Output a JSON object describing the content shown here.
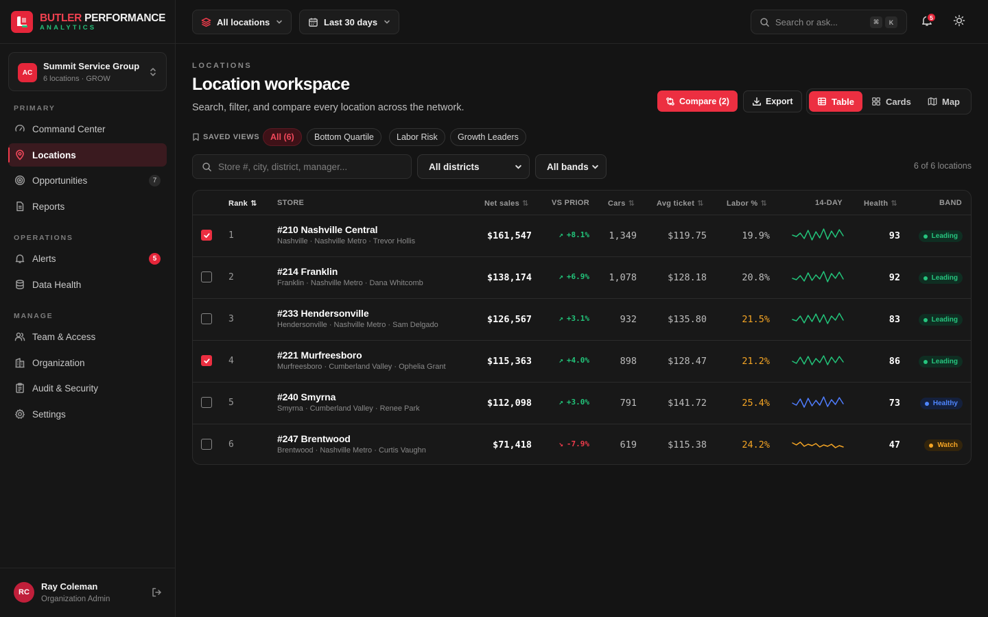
{
  "brand": {
    "name_part1": "BUTLER",
    "name_part2": "PERFORMANCE",
    "subtitle": "ANALYTICS"
  },
  "org": {
    "initials": "AC",
    "name": "Summit Service Group",
    "meta": "6 locations · GROW"
  },
  "nav": {
    "primary_label": "PRIMARY",
    "primary": [
      {
        "label": "Command Center",
        "icon": "gauge-icon"
      },
      {
        "label": "Locations",
        "icon": "map-pin-icon",
        "active": true
      },
      {
        "label": "Opportunities",
        "icon": "target-icon",
        "count": "7"
      },
      {
        "label": "Reports",
        "icon": "file-icon"
      }
    ],
    "operations_label": "OPERATIONS",
    "operations": [
      {
        "label": "Alerts",
        "icon": "bell-icon",
        "count": "5"
      },
      {
        "label": "Data Health",
        "icon": "database-icon"
      }
    ],
    "manage_label": "MANAGE",
    "manage": [
      {
        "label": "Team & Access",
        "icon": "users-icon"
      },
      {
        "label": "Organization",
        "icon": "building-icon"
      },
      {
        "label": "Audit & Security",
        "icon": "clipboard-icon"
      },
      {
        "label": "Settings",
        "icon": "gear-icon"
      }
    ]
  },
  "user": {
    "initials": "RC",
    "name": "Ray Coleman",
    "role": "Organization Admin"
  },
  "topbar": {
    "locations_label": "All locations",
    "range_label": "Last 30 days",
    "search_placeholder": "Search or ask...",
    "kbd_cmd": "⌘",
    "kbd_k": "K",
    "notif_count": "5"
  },
  "page": {
    "eyebrow": "LOCATIONS",
    "title": "Location workspace",
    "subtitle": "Search, filter, and compare every location across the network.",
    "compare_label": "Compare (2)",
    "export_label": "Export",
    "views": {
      "table": "Table",
      "cards": "Cards",
      "map": "Map"
    },
    "saved_views_label": "SAVED VIEWS",
    "chips": [
      "All (6)",
      "Bottom Quartile",
      "Labor Risk",
      "Growth Leaders"
    ],
    "filter_placeholder": "Store #, city, district, manager...",
    "district_select": "All districts",
    "band_select": "All bands",
    "count_text": "6 of 6 locations"
  },
  "table": {
    "headers": {
      "rank": "Rank",
      "store": "STORE",
      "sales": "Net sales",
      "vs": "VS PRIOR",
      "cars": "Cars",
      "ticket": "Avg ticket",
      "labor": "Labor %",
      "trend": "14-DAY",
      "health": "Health",
      "band": "BAND"
    },
    "rows": [
      {
        "checked": true,
        "rank": "1",
        "name": "#210 Nashville Central",
        "meta": "Nashville · Nashville Metro · Trevor Hollis",
        "sales": "$161,547",
        "vs": "+8.1%",
        "dir": "up",
        "cars": "1,349",
        "ticket": "$119.75",
        "labor": "19.9%",
        "labor_warn": false,
        "health": "93",
        "band": "Leading",
        "band_type": "leading",
        "spark_color": "#22c47a"
      },
      {
        "checked": false,
        "rank": "2",
        "name": "#214 Franklin",
        "meta": "Franklin · Nashville Metro · Dana Whitcomb",
        "sales": "$138,174",
        "vs": "+6.9%",
        "dir": "up",
        "cars": "1,078",
        "ticket": "$128.18",
        "labor": "20.8%",
        "labor_warn": false,
        "health": "92",
        "band": "Leading",
        "band_type": "leading",
        "spark_color": "#22c47a"
      },
      {
        "checked": false,
        "rank": "3",
        "name": "#233 Hendersonville",
        "meta": "Hendersonville · Nashville Metro · Sam Delgado",
        "sales": "$126,567",
        "vs": "+3.1%",
        "dir": "up",
        "cars": "932",
        "ticket": "$135.80",
        "labor": "21.5%",
        "labor_warn": true,
        "health": "83",
        "band": "Leading",
        "band_type": "leading",
        "spark_color": "#22c47a"
      },
      {
        "checked": true,
        "rank": "4",
        "name": "#221 Murfreesboro",
        "meta": "Murfreesboro · Cumberland Valley · Ophelia Grant",
        "sales": "$115,363",
        "vs": "+4.0%",
        "dir": "up",
        "cars": "898",
        "ticket": "$128.47",
        "labor": "21.2%",
        "labor_warn": true,
        "health": "86",
        "band": "Leading",
        "band_type": "leading",
        "spark_color": "#22c47a"
      },
      {
        "checked": false,
        "rank": "5",
        "name": "#240 Smyrna",
        "meta": "Smyrna · Cumberland Valley · Renee Park",
        "sales": "$112,098",
        "vs": "+3.0%",
        "dir": "up",
        "cars": "791",
        "ticket": "$141.72",
        "labor": "25.4%",
        "labor_warn": true,
        "health": "73",
        "band": "Healthy",
        "band_type": "healthy",
        "spark_color": "#4f7dff"
      },
      {
        "checked": false,
        "rank": "6",
        "name": "#247 Brentwood",
        "meta": "Brentwood · Nashville Metro · Curtis Vaughn",
        "sales": "$71,418",
        "vs": "-7.9%",
        "dir": "down",
        "cars": "619",
        "ticket": "$115.38",
        "labor": "24.2%",
        "labor_warn": true,
        "health": "47",
        "band": "Watch",
        "band_type": "watch",
        "spark_color": "#f5a524"
      }
    ]
  }
}
